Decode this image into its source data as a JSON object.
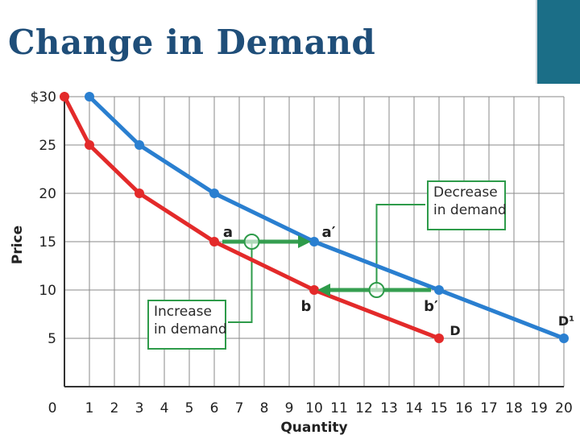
{
  "slide": {
    "title": "Change in Demand"
  },
  "chart_data": {
    "type": "line",
    "x": [
      1,
      3,
      6,
      10,
      15,
      20
    ],
    "xlabel": "Quantity",
    "ylabel": "Price",
    "xlim": [
      0,
      20
    ],
    "ylim": [
      0,
      30
    ],
    "x_ticks": [
      "0",
      "1",
      "2",
      "3",
      "4",
      "5",
      "6",
      "7",
      "8",
      "9",
      "10",
      "11",
      "12",
      "13",
      "14",
      "15",
      "16",
      "17",
      "18",
      "19",
      "20"
    ],
    "y_ticks": [
      "$30",
      "25",
      "20",
      "15",
      "10",
      "5"
    ],
    "y_tick_values": [
      30,
      25,
      20,
      15,
      10,
      5
    ],
    "grid": true,
    "series": [
      {
        "name": "D",
        "color": "#e32a2a",
        "points": [
          [
            0,
            30
          ],
          [
            1,
            25
          ],
          [
            3,
            20
          ],
          [
            6,
            15
          ],
          [
            10,
            10
          ],
          [
            15,
            5
          ]
        ]
      },
      {
        "name": "D¹",
        "color": "#2a7fd0",
        "points": [
          [
            1,
            30
          ],
          [
            3,
            25
          ],
          [
            6,
            20
          ],
          [
            10,
            15
          ],
          [
            15,
            10
          ],
          [
            20,
            5
          ]
        ]
      }
    ],
    "point_labels": [
      {
        "text": "a",
        "x": 6,
        "y": 15
      },
      {
        "text": "a′",
        "x": 10,
        "y": 15
      },
      {
        "text": "b",
        "x": 10,
        "y": 10
      },
      {
        "text": "b′",
        "x": 15,
        "y": 10
      }
    ],
    "shift_arrows": [
      {
        "from": [
          6,
          15
        ],
        "to": [
          10,
          15
        ],
        "color": "#2e9b4a"
      },
      {
        "from": [
          15,
          10
        ],
        "to": [
          10,
          10
        ],
        "color": "#2e9b4a"
      }
    ],
    "annotations": [
      {
        "lines": [
          "Decrease",
          "in demand"
        ]
      },
      {
        "lines": [
          "Increase",
          "in demand"
        ]
      }
    ]
  }
}
